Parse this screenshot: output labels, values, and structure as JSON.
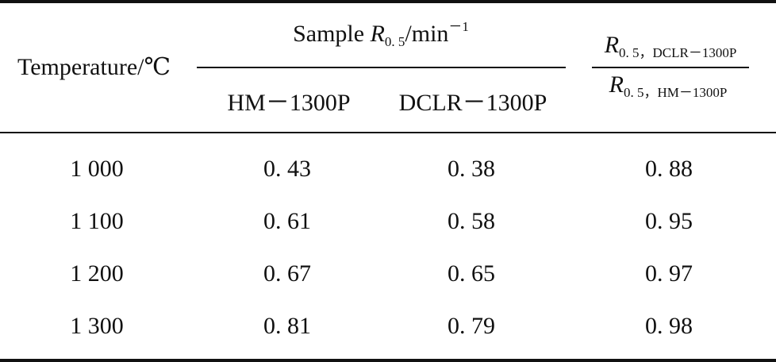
{
  "table": {
    "header": {
      "temperature": "Temperature/℃",
      "sample_prefix": "Sample ",
      "sample_R": "R",
      "sample_R_sub": "0. 5",
      "sample_unit": "/min",
      "sample_sup": "－1",
      "col_hm": "HM－1300P",
      "col_dclr": "DCLR－1300P",
      "ratio_num_R": "R",
      "ratio_num_sub": "0. 5，DCLR－1300P",
      "ratio_den_R": "R",
      "ratio_den_sub": "0. 5，HM－1300P"
    },
    "rows": [
      {
        "temperature": "1 000",
        "hm": "0. 43",
        "dclr": "0. 38",
        "ratio": "0. 88"
      },
      {
        "temperature": "1 100",
        "hm": "0. 61",
        "dclr": "0. 58",
        "ratio": "0. 95"
      },
      {
        "temperature": "1 200",
        "hm": "0. 67",
        "dclr": "0. 65",
        "ratio": "0. 97"
      },
      {
        "temperature": "1 300",
        "hm": "0. 81",
        "dclr": "0. 79",
        "ratio": "0. 98"
      }
    ]
  }
}
